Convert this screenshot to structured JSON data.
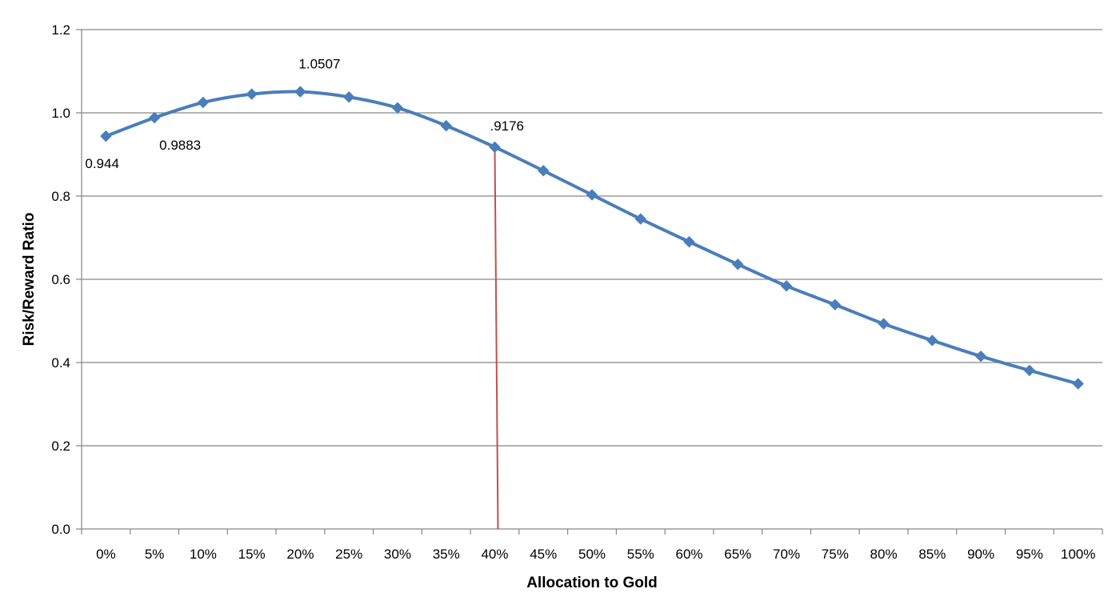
{
  "chart_data": {
    "type": "line",
    "xlabel": "Allocation to Gold",
    "ylabel": "Risk/Reward Ratio",
    "categories": [
      "0%",
      "5%",
      "10%",
      "15%",
      "20%",
      "25%",
      "30%",
      "35%",
      "40%",
      "45%",
      "50%",
      "55%",
      "60%",
      "65%",
      "70%",
      "75%",
      "80%",
      "85%",
      "90%",
      "95%",
      "100%"
    ],
    "series": [
      {
        "values": [
          0.944,
          0.9883,
          1.025,
          1.045,
          1.0507,
          1.038,
          1.012,
          0.969,
          0.9176,
          0.861,
          0.803,
          0.745,
          0.69,
          0.636,
          0.584,
          0.539,
          0.493,
          0.453,
          0.415,
          0.381,
          0.349
        ]
      }
    ],
    "ylim": [
      0,
      1.2
    ],
    "yticks": [
      "0.0",
      "0.2",
      "0.4",
      "0.6",
      "0.8",
      "1.0",
      "1.2"
    ],
    "ytick_values": [
      0,
      0.2,
      0.4,
      0.6,
      0.8,
      1.0,
      1.2
    ],
    "grid": true,
    "legend": "none",
    "data_labels": [
      {
        "index": 0,
        "text": "0.944"
      },
      {
        "index": 1,
        "text": "0.9883"
      },
      {
        "index": 4,
        "text": "1.0507"
      },
      {
        "index": 8,
        "text": ".9176"
      }
    ],
    "marker_line": {
      "category": "40%",
      "y_from": 0.9176,
      "y_to": 0
    },
    "colors": {
      "series": "#4a7ebb",
      "marker_line": "#c0504d",
      "grid": "#868686",
      "axis": "#868686"
    }
  }
}
